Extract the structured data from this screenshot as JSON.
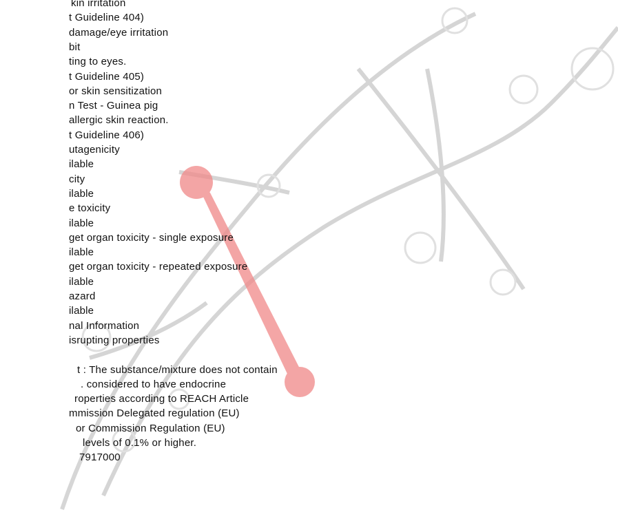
{
  "lines": [
    "kin irritation",
    "t Guideline 404)",
    "damage/eye irritation",
    "bit",
    "ting to eyes.",
    "t Guideline 405)",
    "or skin sensitization",
    "n Test - Guinea pig",
    "allergic skin reaction.",
    "t Guideline 406)",
    "utagenicity",
    "ilable",
    "city",
    "ilable",
    "e toxicity",
    "ilable",
    "get organ toxicity - single exposure",
    "ilable",
    "get organ toxicity - repeated exposure",
    "ilable",
    "azard",
    "ilable",
    "nal Information",
    "isrupting properties",
    "t : The substance/mixture does not contain",
    ". considered to have endocrine",
    "roperties according to REACH Article",
    "mmission Delegated regulation (EU)",
    "or Commission Regulation (EU)",
    "levels of 0.1% or higher.",
    "7917000"
  ]
}
